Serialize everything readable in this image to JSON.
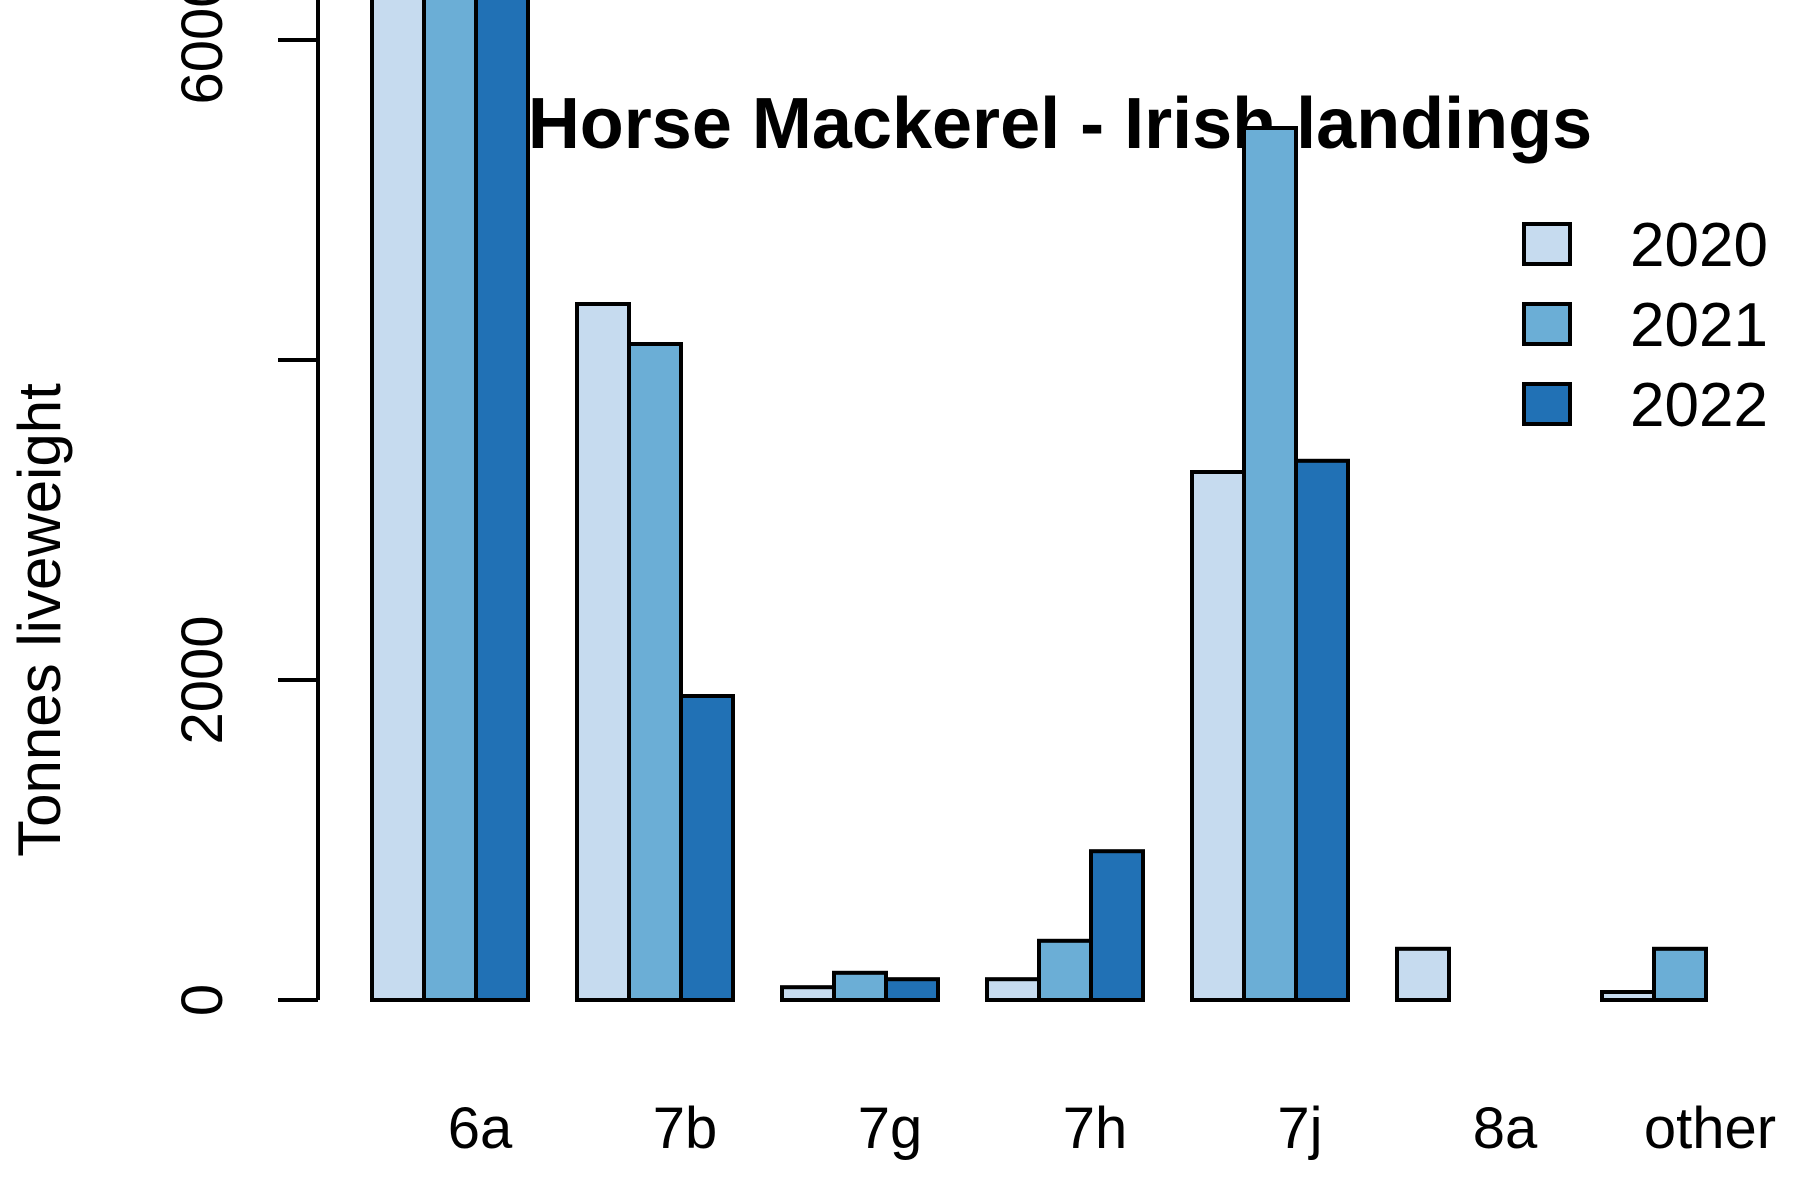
{
  "chart_data": {
    "type": "bar",
    "title": "Horse Mackerel - Irish landings",
    "ylabel": "Tonnes liveweight",
    "xlabel": "",
    "categories": [
      "6a",
      "7b",
      "7g",
      "7h",
      "7j",
      "8a",
      "other"
    ],
    "series": [
      {
        "name": "2020",
        "color": "#c6dbef",
        "values": [
          9200,
          4350,
          80,
          130,
          3300,
          320,
          50
        ]
      },
      {
        "name": "2021",
        "color": "#6baed6",
        "values": [
          8550,
          4100,
          170,
          370,
          5450,
          0,
          320
        ]
      },
      {
        "name": "2022",
        "color": "#2171b5",
        "values": [
          9500,
          1900,
          130,
          930,
          3370,
          0,
          0
        ]
      }
    ],
    "yticks": [
      0,
      2000,
      4000,
      6000,
      8000
    ],
    "ytick_labels": [
      "0",
      "2000",
      "",
      "6000",
      ""
    ],
    "ylim": [
      0,
      10000
    ],
    "grid": false,
    "legend_position": "top-right"
  }
}
